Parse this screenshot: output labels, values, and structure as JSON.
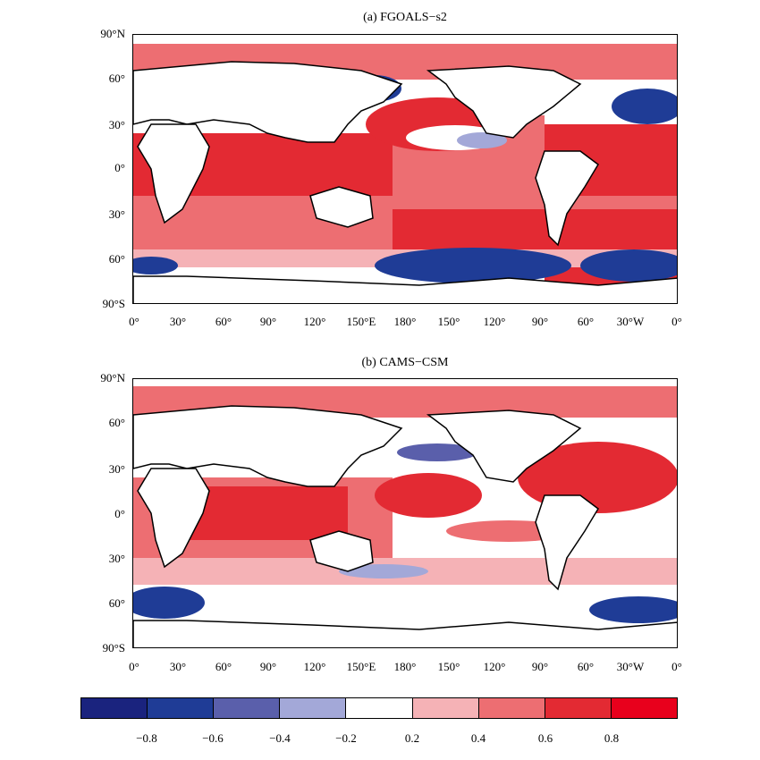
{
  "panels": [
    {
      "title": "(a) FGOALS−s2"
    },
    {
      "title": "(b) CAMS−CSM"
    }
  ],
  "lat_labels": [
    "90°N",
    "60°",
    "30°",
    "0°",
    "30°",
    "60°",
    "90°S"
  ],
  "lon_labels": [
    "0°",
    "30°",
    "60°",
    "90°",
    "120°",
    "150°E",
    "180°",
    "150°",
    "120°",
    "90°",
    "60°",
    "30°W",
    "0°"
  ],
  "colorbar": {
    "colors": [
      "#1a237e",
      "#1f3c96",
      "#5a5fab",
      "#a3a8d8",
      "#ffffff",
      "#f5b2b6",
      "#ed6e72",
      "#e32a33",
      "#e8001c"
    ],
    "labels": [
      "−0.8",
      "−0.6",
      "−0.4",
      "−0.2",
      "0.2",
      "0.4",
      "0.6",
      "0.8"
    ]
  },
  "legend_colors": {
    "strong_red": "#e32a33",
    "mid_red": "#ed6e72",
    "light_red": "#f5b2b6",
    "light_blue": "#a3a8d8",
    "mid_blue": "#5a5fab",
    "dark_blue": "#1f3c96"
  }
}
